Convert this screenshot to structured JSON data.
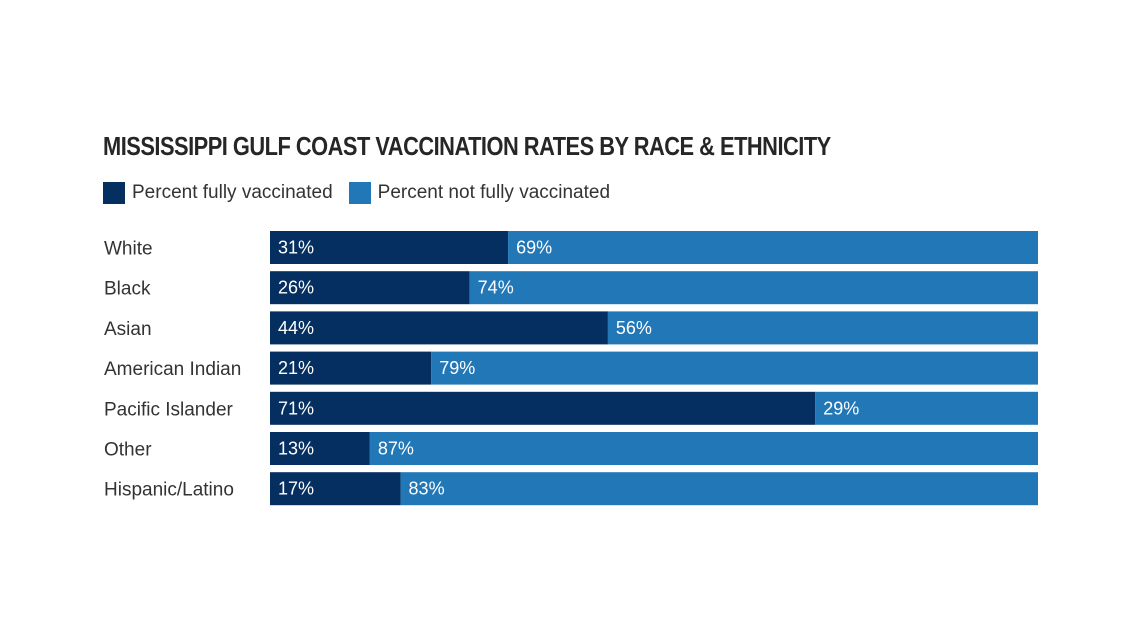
{
  "chart_data": {
    "type": "bar",
    "orientation": "horizontal",
    "stacked": true,
    "title": "MISSISSIPPI GULF COAST VACCINATION RATES BY RACE & ETHNICITY",
    "categories": [
      "White",
      "Black",
      "Asian",
      "American Indian",
      "Pacific Islander",
      "Other",
      "Hispanic/Latino"
    ],
    "series": [
      {
        "name": "Percent fully vaccinated",
        "color": "#052f60",
        "values": [
          31,
          26,
          44,
          21,
          71,
          13,
          17
        ]
      },
      {
        "name": "Percent not fully vaccinated",
        "color": "#2277b7",
        "values": [
          69,
          74,
          56,
          79,
          29,
          87,
          83
        ]
      }
    ],
    "value_suffix": "%",
    "xlim": [
      0,
      100
    ],
    "grid": false,
    "legend_position": "top-left"
  }
}
